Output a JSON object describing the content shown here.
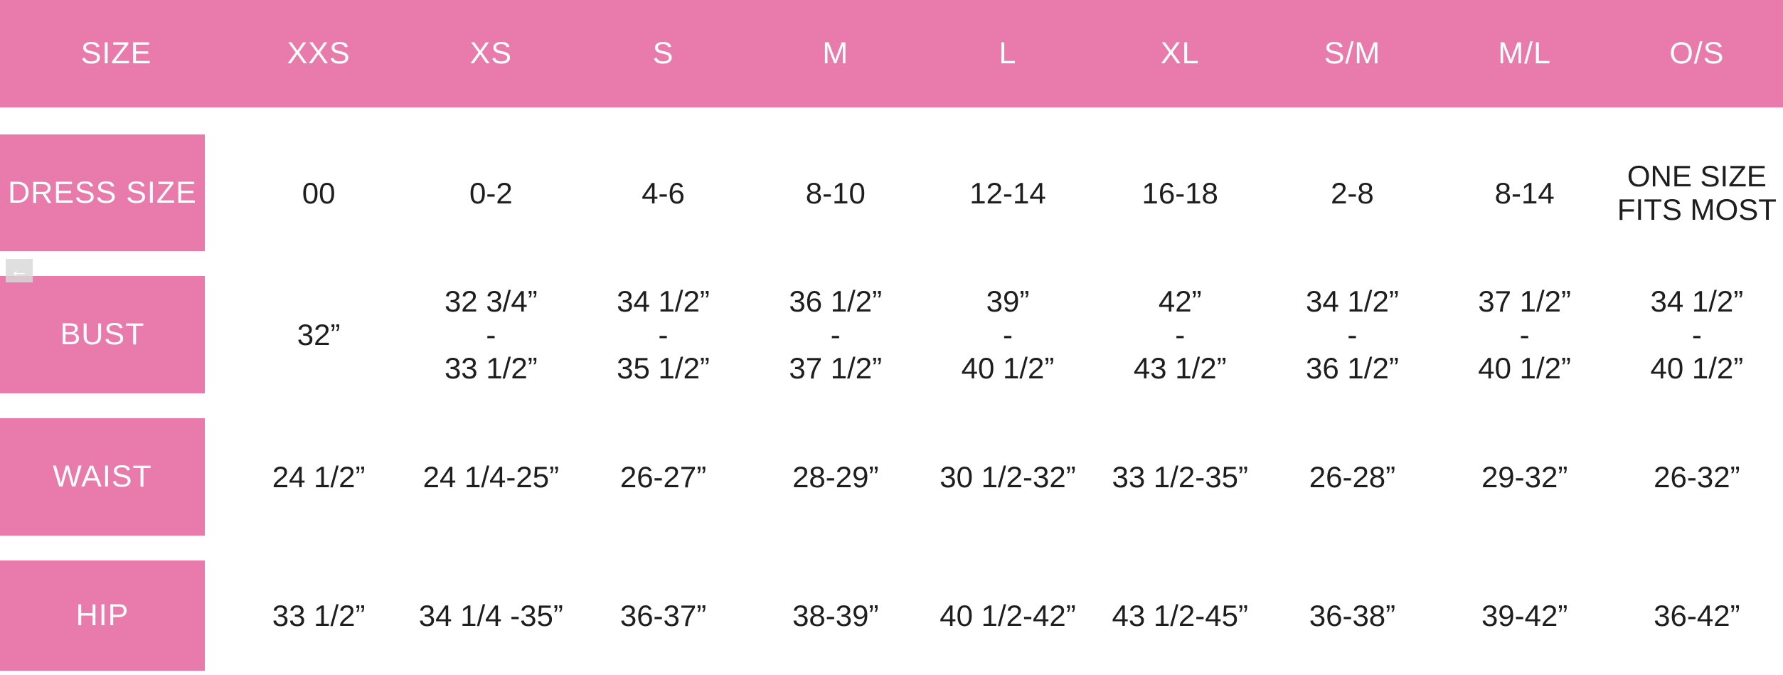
{
  "theme": {
    "pink": "#e97bac",
    "header_text": "#ffffff",
    "cell_text": "#1e1e1e",
    "scroll_button_bg": "#d8d8d8"
  },
  "scroll_left_button": {
    "icon": "left-arrow-icon",
    "glyph": "←"
  },
  "table": {
    "header": [
      "SIZE",
      "XXS",
      "XS",
      "S",
      "M",
      "L",
      "XL",
      "S/M",
      "M/L",
      "O/S"
    ],
    "rows": [
      {
        "label": "DRESS SIZE",
        "values": [
          "00",
          "0-2",
          "4-6",
          "8-10",
          "12-14",
          "16-18",
          "2-8",
          "8-14",
          "ONE SIZE\nFITS MOST"
        ]
      },
      {
        "label": "BUST",
        "values": [
          "32”",
          "32 3/4”\n-\n33 1/2”",
          "34 1/2”\n-\n35 1/2”",
          "36 1/2”\n-\n37 1/2”",
          "39”\n-\n40 1/2”",
          "42”\n-\n43 1/2”",
          "34 1/2”\n-\n36 1/2”",
          "37 1/2”\n-\n40 1/2”",
          "34 1/2”\n-\n40 1/2”"
        ]
      },
      {
        "label": "WAIST",
        "values": [
          "24 1/2”",
          "24 1/4-25”",
          "26-27”",
          "28-29”",
          "30 1/2-32”",
          "33 1/2-35”",
          "26-28”",
          "29-32”",
          "26-32”"
        ]
      },
      {
        "label": "HIP",
        "values": [
          "33 1/2”",
          "34 1/4 -35”",
          "36-37”",
          "38-39”",
          "40 1/2-42”",
          "43 1/2-45”",
          "36-38”",
          "39-42”",
          "36-42”"
        ]
      }
    ]
  }
}
